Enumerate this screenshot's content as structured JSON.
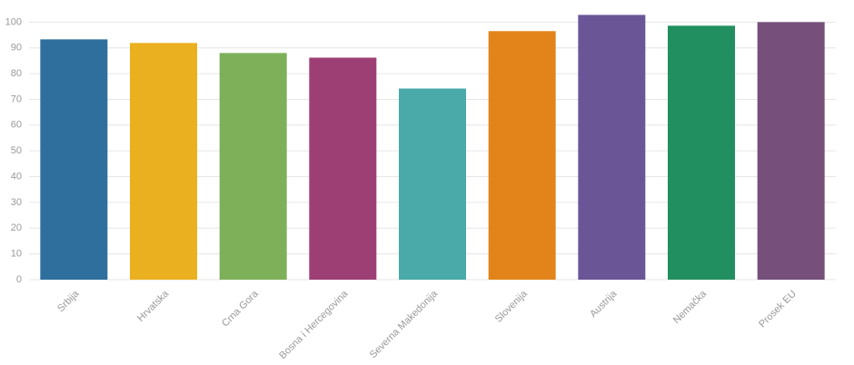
{
  "chart_data": {
    "type": "bar",
    "categories": [
      "Srbija",
      "Hrvatska",
      "Crna Gora",
      "Bosna i Hercegovina",
      "Severna Makedonija",
      "Slovenija",
      "Austrija",
      "Nemačka",
      "Prosek EU"
    ],
    "values": [
      93.3,
      91.9,
      88.0,
      86.2,
      74.2,
      96.5,
      102.8,
      98.6,
      100
    ],
    "colors": [
      "#2e6f9e",
      "#ebb01f",
      "#7db058",
      "#9d3f74",
      "#49aaa9",
      "#e2841a",
      "#6a5697",
      "#218f5f",
      "#764f7b"
    ],
    "ylim": [
      0,
      104
    ],
    "yticks": [
      0,
      10,
      20,
      30,
      40,
      50,
      60,
      70,
      80,
      90,
      100
    ],
    "grid": true
  }
}
